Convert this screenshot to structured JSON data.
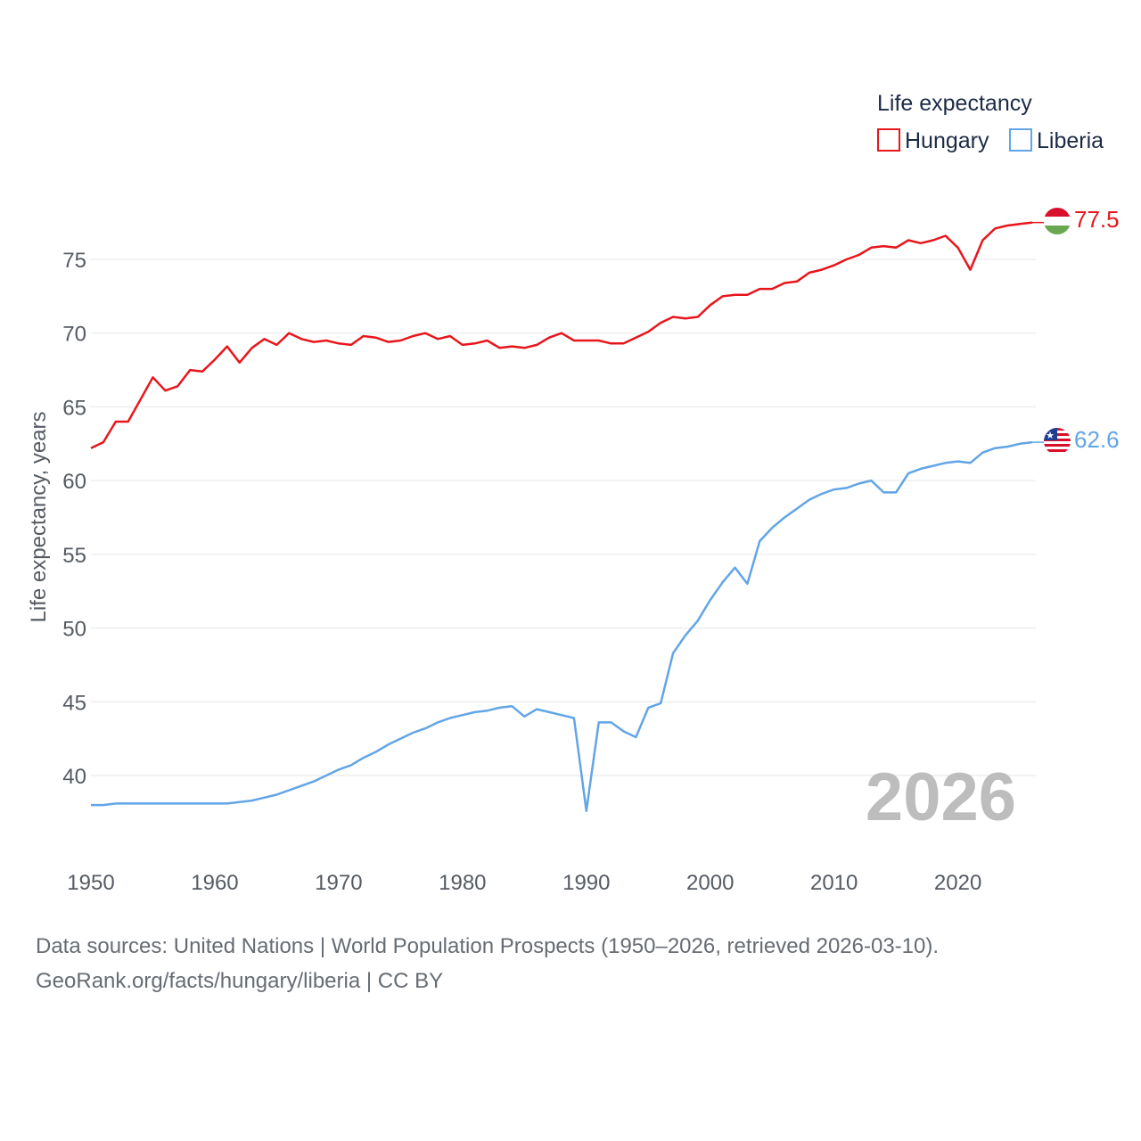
{
  "chart_data": {
    "type": "line",
    "title": "",
    "legend_title": "Life expectancy",
    "legend_position": "top-right",
    "xlabel": "",
    "ylabel": "Life expectancy, years",
    "xlim": [
      1950,
      2026
    ],
    "ylim": [
      36,
      80
    ],
    "x_ticks": [
      1950,
      1960,
      1970,
      1980,
      1990,
      2000,
      2010,
      2020
    ],
    "y_ticks": [
      40,
      45,
      50,
      55,
      60,
      65,
      70,
      75
    ],
    "year_watermark": "2026",
    "x": [
      1950,
      1951,
      1952,
      1953,
      1954,
      1955,
      1956,
      1957,
      1958,
      1959,
      1960,
      1961,
      1962,
      1963,
      1964,
      1965,
      1966,
      1967,
      1968,
      1969,
      1970,
      1971,
      1972,
      1973,
      1974,
      1975,
      1976,
      1977,
      1978,
      1979,
      1980,
      1981,
      1982,
      1983,
      1984,
      1985,
      1986,
      1987,
      1988,
      1989,
      1990,
      1991,
      1992,
      1993,
      1994,
      1995,
      1996,
      1997,
      1998,
      1999,
      2000,
      2001,
      2002,
      2003,
      2004,
      2005,
      2006,
      2007,
      2008,
      2009,
      2010,
      2011,
      2012,
      2013,
      2014,
      2015,
      2016,
      2017,
      2018,
      2019,
      2020,
      2021,
      2022,
      2023,
      2024,
      2025,
      2026
    ],
    "series": [
      {
        "name": "Hungary",
        "color": "#e8161b",
        "flag": "hungary-flag",
        "end_label": "77.5",
        "values": [
          62.2,
          62.6,
          64.0,
          64.0,
          65.5,
          67.0,
          66.1,
          66.4,
          67.5,
          67.4,
          68.2,
          69.1,
          68.0,
          69.0,
          69.6,
          69.2,
          70.0,
          69.6,
          69.4,
          69.5,
          69.3,
          69.2,
          69.8,
          69.7,
          69.4,
          69.5,
          69.8,
          70.0,
          69.6,
          69.8,
          69.2,
          69.3,
          69.5,
          69.0,
          69.1,
          69.0,
          69.2,
          69.7,
          70.0,
          69.5,
          69.5,
          69.5,
          69.3,
          69.3,
          69.7,
          70.1,
          70.7,
          71.1,
          71.0,
          71.1,
          71.9,
          72.5,
          72.6,
          72.6,
          73.0,
          73.0,
          73.4,
          73.5,
          74.1,
          74.3,
          74.6,
          75.0,
          75.3,
          75.8,
          75.9,
          75.8,
          76.3,
          76.1,
          76.3,
          76.6,
          75.8,
          74.3,
          76.3,
          77.1,
          77.3,
          77.4,
          77.5
        ]
      },
      {
        "name": "Liberia",
        "color": "#62a5e6",
        "flag": "liberia-flag",
        "end_label": "62.6",
        "values": [
          38.0,
          38.0,
          38.1,
          38.1,
          38.1,
          38.1,
          38.1,
          38.1,
          38.1,
          38.1,
          38.1,
          38.1,
          38.2,
          38.3,
          38.5,
          38.7,
          39.0,
          39.3,
          39.6,
          40.0,
          40.4,
          40.7,
          41.2,
          41.6,
          42.1,
          42.5,
          42.9,
          43.2,
          43.6,
          43.9,
          44.1,
          44.3,
          44.4,
          44.6,
          44.7,
          44.0,
          44.5,
          44.3,
          44.1,
          43.9,
          37.6,
          43.6,
          43.6,
          43.0,
          42.6,
          44.6,
          44.9,
          48.3,
          49.5,
          50.5,
          51.9,
          53.1,
          54.1,
          53.0,
          55.9,
          56.8,
          57.5,
          58.1,
          58.7,
          59.1,
          59.4,
          59.5,
          59.8,
          60.0,
          59.2,
          59.2,
          60.5,
          60.8,
          61.0,
          61.2,
          61.3,
          61.2,
          61.9,
          62.2,
          62.3,
          62.5,
          62.6
        ]
      }
    ]
  },
  "footer": {
    "sources": "Data sources: United Nations | World Population Prospects (1950–2026, retrieved 2026-03-10).",
    "attribution": "GeoRank.org/facts/hungary/liberia | CC BY"
  }
}
